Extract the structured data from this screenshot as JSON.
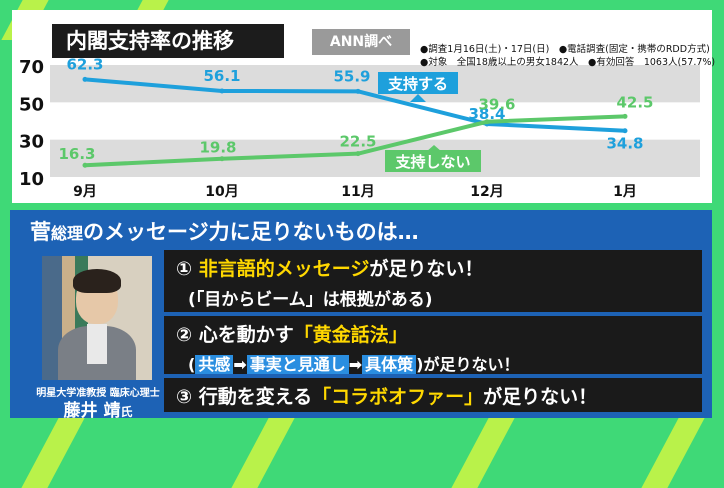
{
  "chart_data": {
    "type": "line",
    "title": "内閣支持率の推移",
    "categories": [
      "9月",
      "10月",
      "11月",
      "12月",
      "1月"
    ],
    "ylim": [
      10,
      70
    ],
    "yticks": [
      "70",
      "50",
      "30",
      "10"
    ],
    "series": [
      {
        "name": "支持する",
        "values": [
          62.3,
          56.1,
          55.9,
          38.4,
          34.8
        ],
        "labels": [
          "62.3",
          "56.1",
          "55.9",
          "38.4",
          "34.8"
        ],
        "color": "#1ea0dc"
      },
      {
        "name": "支持しない",
        "values": [
          16.3,
          19.8,
          22.5,
          39.6,
          42.5
        ],
        "labels": [
          "16.3",
          "19.8",
          "22.5",
          "39.6",
          "42.5"
        ],
        "color": "#5cc86a"
      }
    ]
  },
  "header": {
    "title": "内閣支持率の推移",
    "survey_tag": "ANN調べ",
    "note1": "●調査1月16日(土)・17日(日)　●電話調査(固定・携帯のRDD方式)",
    "note2": "●対象　全国18歳以上の男女1842人　●有効回答　1063人(57.7%)"
  },
  "colors": {
    "background": "#3fd977",
    "support": "#1ea0dc",
    "non_support": "#5cc86a",
    "panel_bottom": "#1d62b5",
    "highlight": "#ffd800"
  },
  "bottom": {
    "title_pre": "菅",
    "title_small": "総理",
    "title_post": "のメッセージ力に足りないものは…",
    "person_affiliation": "明星大学准教授 臨床心理士",
    "person_name": "藤井 靖",
    "person_suffix": "氏",
    "item1": {
      "num": "①",
      "highlight": "非言語的メッセージ",
      "rest": "が足りない！",
      "sub": "(「目からビーム」は根拠がある)"
    },
    "item2": {
      "num": "②",
      "pre": "心を動かす",
      "highlight": "「黄金話法」",
      "open": "(",
      "chip1": "共感",
      "chip2": "事実と見通し",
      "chip3": "具体策",
      "close": ")が足りない！",
      "arrow": "➡"
    },
    "item3": {
      "num": "③",
      "pre": "行動を変える",
      "highlight": "「コラボオファー」",
      "rest": "が足りない！"
    }
  }
}
